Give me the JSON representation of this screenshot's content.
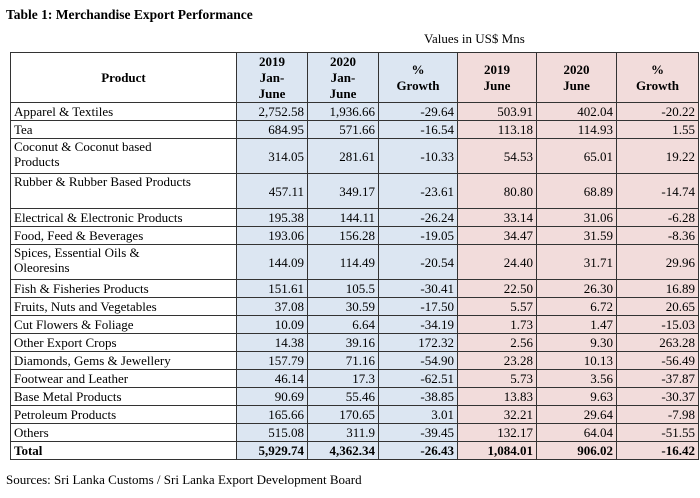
{
  "title": "Table 1: Merchandise Export Performance",
  "units": "Values in US$ Mns",
  "headers": {
    "product": "Product",
    "jj2019": [
      "2019",
      "Jan-",
      "June"
    ],
    "jj2020": [
      "2020",
      "Jan-",
      "June"
    ],
    "growth1": [
      "%",
      "Growth"
    ],
    "june2019": [
      "2019",
      "June"
    ],
    "june2020": [
      "2020",
      "June"
    ],
    "growth2": [
      "%",
      "Growth"
    ]
  },
  "rows": [
    {
      "product": [
        "Apparel & Textiles"
      ],
      "v1": "2,752.58",
      "v2": "1,936.66",
      "g1": "-29.64",
      "v3": "503.91",
      "v4": "402.04",
      "g2": "-20.22"
    },
    {
      "product": [
        "Tea"
      ],
      "v1": "684.95",
      "v2": "571.66",
      "g1": "-16.54",
      "v3": "113.18",
      "v4": "114.93",
      "g2": "1.55"
    },
    {
      "product": [
        "Coconut & Coconut based",
        "Products"
      ],
      "v1": "314.05",
      "v2": "281.61",
      "g1": "-10.33",
      "v3": "54.53",
      "v4": "65.01",
      "g2": "19.22"
    },
    {
      "product": [
        "Rubber & Rubber Based Products"
      ],
      "tall": true,
      "v1": "457.11",
      "v2": "349.17",
      "g1": "-23.61",
      "v3": "80.80",
      "v4": "68.89",
      "g2": "-14.74"
    },
    {
      "product": [
        "Electrical & Electronic Products"
      ],
      "v1": "195.38",
      "v2": "144.11",
      "g1": "-26.24",
      "v3": "33.14",
      "v4": "31.06",
      "g2": "-6.28"
    },
    {
      "product": [
        "Food, Feed & Beverages"
      ],
      "v1": "193.06",
      "v2": "156.28",
      "g1": "-19.05",
      "v3": "34.47",
      "v4": "31.59",
      "g2": "-8.36"
    },
    {
      "product": [
        "Spices, Essential Oils &",
        "Oleoresins"
      ],
      "v1": "144.09",
      "v2": "114.49",
      "g1": "-20.54",
      "v3": "24.40",
      "v4": "31.71",
      "g2": "29.96"
    },
    {
      "product": [
        "Fish & Fisheries Products"
      ],
      "v1": "151.61",
      "v2": "105.5",
      "g1": "-30.41",
      "v3": "22.50",
      "v4": "26.30",
      "g2": "16.89"
    },
    {
      "product": [
        "Fruits, Nuts and Vegetables"
      ],
      "v1": "37.08",
      "v2": "30.59",
      "g1": "-17.50",
      "v3": "5.57",
      "v4": "6.72",
      "g2": "20.65"
    },
    {
      "product": [
        "Cut Flowers & Foliage"
      ],
      "v1": "10.09",
      "v2": "6.64",
      "g1": "-34.19",
      "v3": "1.73",
      "v4": "1.47",
      "g2": "-15.03"
    },
    {
      "product": [
        "Other Export Crops"
      ],
      "v1": "14.38",
      "v2": "39.16",
      "g1": "172.32",
      "v3": "2.56",
      "v4": "9.30",
      "g2": "263.28"
    },
    {
      "product": [
        "Diamonds, Gems & Jewellery"
      ],
      "v1": "157.79",
      "v2": "71.16",
      "g1": "-54.90",
      "v3": "23.28",
      "v4": "10.13",
      "g2": "-56.49"
    },
    {
      "product": [
        "Footwear and Leather"
      ],
      "v1": "46.14",
      "v2": "17.3",
      "g1": "-62.51",
      "v3": "5.73",
      "v4": "3.56",
      "g2": "-37.87"
    },
    {
      "product": [
        "Base Metal Products"
      ],
      "v1": "90.69",
      "v2": "55.46",
      "g1": "-38.85",
      "v3": "13.83",
      "v4": "9.63",
      "g2": "-30.37"
    },
    {
      "product": [
        "Petroleum Products"
      ],
      "v1": "165.66",
      "v2": "170.65",
      "g1": "3.01",
      "v3": "32.21",
      "v4": "29.64",
      "g2": "-7.98"
    },
    {
      "product": [
        "Others"
      ],
      "v1": "515.08",
      "v2": "311.9",
      "g1": "-39.45",
      "v3": "132.17",
      "v4": "64.04",
      "g2": "-51.55"
    }
  ],
  "total": {
    "product": "Total",
    "v1": "5,929.74",
    "v2": "4,362.34",
    "g1": "-26.43",
    "v3": "1,084.01",
    "v4": "906.02",
    "g2": "-16.42"
  },
  "source": "Sources:  Sri Lanka Customs / Sri Lanka Export Development Board",
  "colors": {
    "jan_june_fill": "#dce6f2",
    "june_fill": "#f2dcdb",
    "border": "#333333"
  }
}
